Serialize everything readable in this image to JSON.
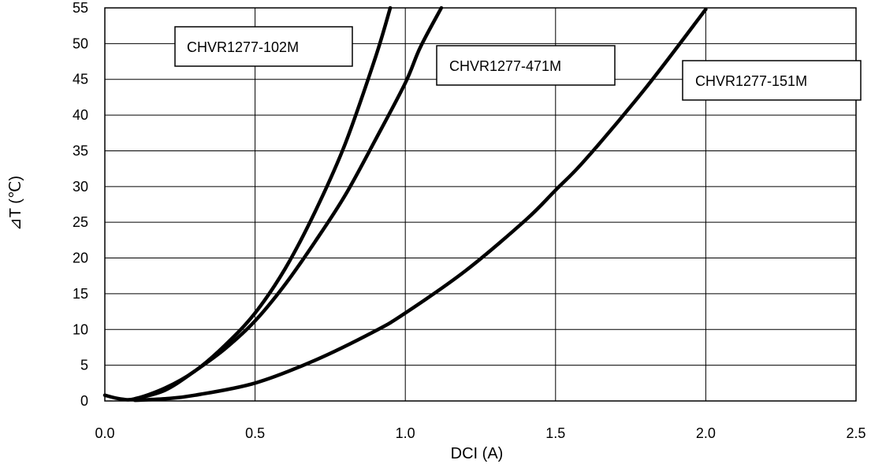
{
  "chart_data": {
    "type": "line",
    "title": "",
    "xlabel": "DCI (A)",
    "ylabel": "⊿T (℃)",
    "xlim": [
      0,
      2.5
    ],
    "ylim": [
      0,
      55
    ],
    "grid": true,
    "xticks": [
      "0.0",
      "0.5",
      "1.0",
      "1.5",
      "2.0",
      "2.5"
    ],
    "yticks": [
      "0",
      "5",
      "10",
      "15",
      "20",
      "25",
      "30",
      "35",
      "40",
      "45",
      "50",
      "55"
    ],
    "xtick_values": [
      0,
      0.5,
      1.0,
      1.5,
      2.0,
      2.5
    ],
    "ytick_values": [
      0,
      5,
      10,
      15,
      20,
      25,
      30,
      35,
      40,
      45,
      50,
      55
    ],
    "series": [
      {
        "name": "CHVR1277-102M",
        "x": [
          0,
          0.05,
          0.1,
          0.2,
          0.3,
          0.4,
          0.5,
          0.6,
          0.7,
          0.8,
          0.9,
          0.95
        ],
        "y": [
          0.8,
          0.3,
          0.3,
          1.8,
          4.2,
          7.8,
          12.3,
          18.5,
          26.5,
          36.0,
          48.0,
          55.0
        ]
      },
      {
        "name": "CHVR1277-471M",
        "x": [
          0.1,
          0.2,
          0.3,
          0.4,
          0.5,
          0.6,
          0.7,
          0.8,
          0.9,
          1.0,
          1.05,
          1.12
        ],
        "y": [
          0.3,
          1.5,
          4.2,
          7.3,
          11.2,
          16.3,
          22.3,
          28.8,
          36.5,
          44.5,
          49.5,
          55.0
        ]
      },
      {
        "name": "CHVR1277-151M",
        "x": [
          0.1,
          0.2,
          0.3,
          0.5,
          0.7,
          0.9,
          1.0,
          1.2,
          1.4,
          1.5,
          1.6,
          1.8,
          2.0
        ],
        "y": [
          0.1,
          0.3,
          0.8,
          2.5,
          5.7,
          9.8,
          12.3,
          18.2,
          25.3,
          29.5,
          33.8,
          43.8,
          54.8
        ]
      }
    ],
    "legend": [
      {
        "label": "CHVR1277-102M",
        "series": 0
      },
      {
        "label": "CHVR1277-471M",
        "series": 1
      },
      {
        "label": "CHVR1277-151M",
        "series": 2
      }
    ]
  }
}
